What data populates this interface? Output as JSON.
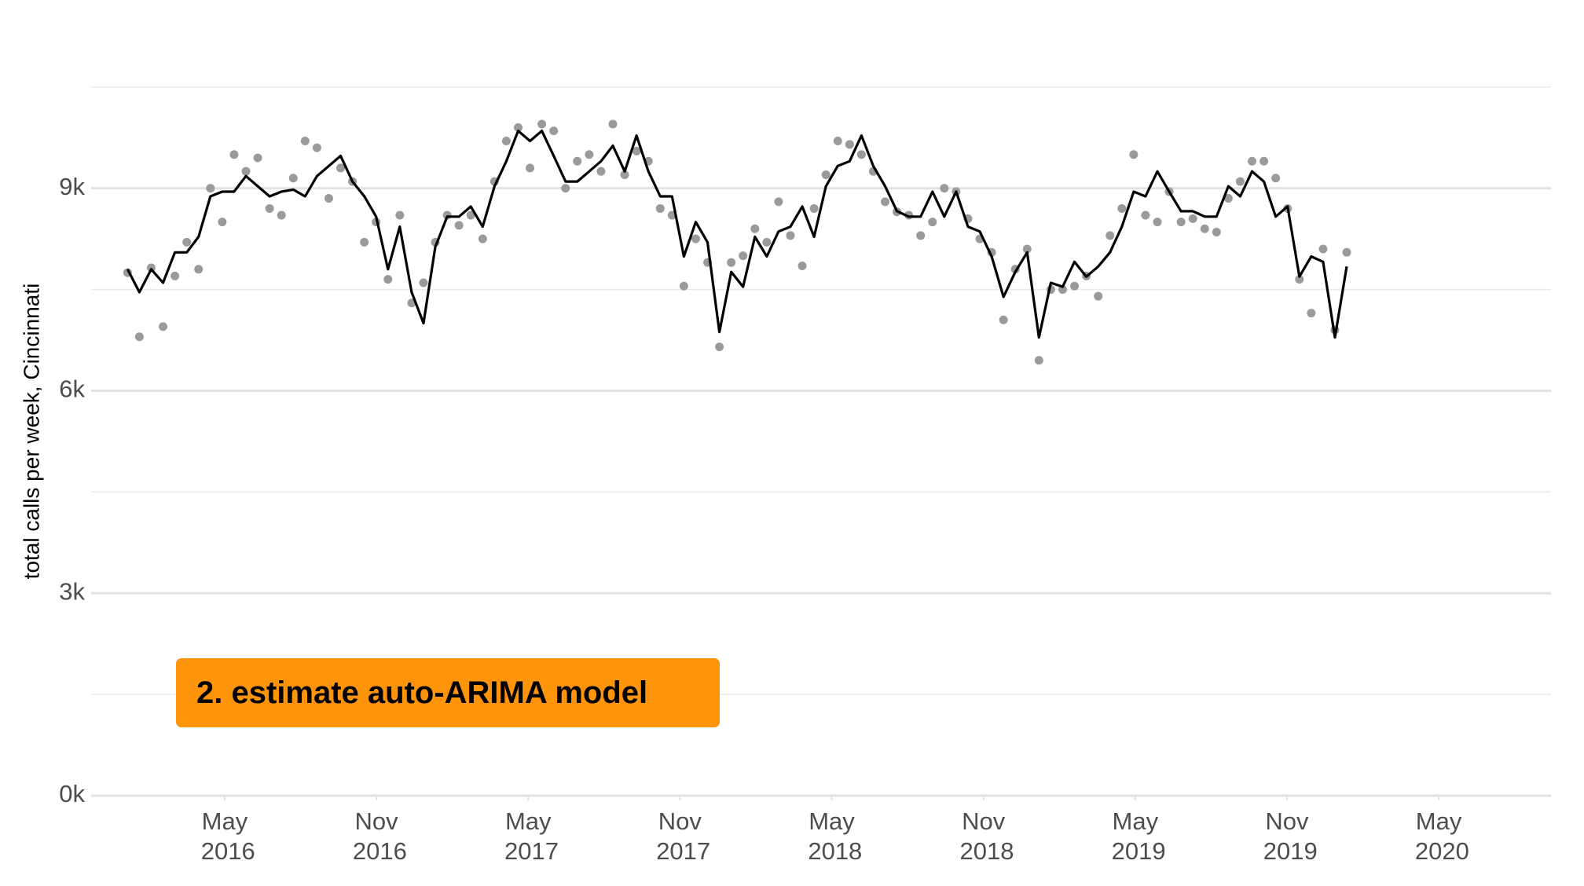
{
  "chart_data": {
    "type": "scatter-line",
    "y_label": "total calls per week, Cincinnati",
    "annotation": "2. estimate auto-ARIMA model",
    "xlim": [
      2015.89,
      2020.7
    ],
    "ylim": [
      0,
      10800
    ],
    "xticks": [
      {
        "value": 2016.33,
        "label": "May 2016"
      },
      {
        "value": 2016.83,
        "label": "Nov 2016"
      },
      {
        "value": 2017.33,
        "label": "May 2017"
      },
      {
        "value": 2017.83,
        "label": "Nov 2017"
      },
      {
        "value": 2018.33,
        "label": "May 2018"
      },
      {
        "value": 2018.83,
        "label": "Nov 2018"
      },
      {
        "value": 2019.33,
        "label": "May 2019"
      },
      {
        "value": 2019.83,
        "label": "Nov 2019"
      },
      {
        "value": 2020.33,
        "label": "May 2020"
      }
    ],
    "yticks": [
      {
        "value": 0,
        "label": "0k"
      },
      {
        "value": 3000,
        "label": "3k"
      },
      {
        "value": 6000,
        "label": "6k"
      },
      {
        "value": 9000,
        "label": "9k"
      }
    ],
    "minor_yticks": [
      1500,
      4500,
      7500,
      10500
    ],
    "grid": true,
    "x": [
      2016.01,
      2016.049,
      2016.088,
      2016.127,
      2016.166,
      2016.205,
      2016.244,
      2016.283,
      2016.322,
      2016.361,
      2016.4,
      2016.439,
      2016.478,
      2016.517,
      2016.556,
      2016.595,
      2016.634,
      2016.673,
      2016.712,
      2016.751,
      2016.79,
      2016.829,
      2016.868,
      2016.907,
      2016.946,
      2016.985,
      2017.024,
      2017.063,
      2017.102,
      2017.141,
      2017.18,
      2017.219,
      2017.258,
      2017.297,
      2017.336,
      2017.375,
      2017.414,
      2017.453,
      2017.492,
      2017.531,
      2017.57,
      2017.609,
      2017.648,
      2017.687,
      2017.726,
      2017.765,
      2017.804,
      2017.843,
      2017.882,
      2017.921,
      2017.96,
      2017.999,
      2018.038,
      2018.077,
      2018.116,
      2018.155,
      2018.194,
      2018.233,
      2018.272,
      2018.311,
      2018.35,
      2018.389,
      2018.428,
      2018.467,
      2018.506,
      2018.545,
      2018.584,
      2018.623,
      2018.662,
      2018.701,
      2018.74,
      2018.779,
      2018.818,
      2018.857,
      2018.896,
      2018.935,
      2018.974,
      2019.013,
      2019.052,
      2019.091,
      2019.13,
      2019.169,
      2019.208,
      2019.247,
      2019.286,
      2019.325,
      2019.364,
      2019.403,
      2019.442,
      2019.481,
      2019.52,
      2019.559,
      2019.598,
      2019.637,
      2019.676,
      2019.715,
      2019.754,
      2019.793,
      2019.832,
      2019.871,
      2019.91,
      2019.949,
      2019.988,
      2020.027
    ],
    "series": [
      {
        "mark": "point",
        "color": "#9a9a9a",
        "values": [
          7750,
          6800,
          7820,
          6950,
          7700,
          8200,
          7800,
          9000,
          8500,
          9500,
          9250,
          9450,
          8700,
          8600,
          9150,
          9700,
          9600,
          8850,
          9300,
          9100,
          8200,
          8500,
          7650,
          8600,
          7300,
          7600,
          8200,
          8600,
          8450,
          8600,
          8250,
          9100,
          9700,
          9900,
          9300,
          9950,
          9850,
          9000,
          9400,
          9500,
          9250,
          9950,
          9200,
          9550,
          9400,
          8700,
          8600,
          7550,
          8250,
          7900,
          6650,
          7900,
          8000,
          8400,
          8200,
          8800,
          8300,
          7850,
          8700,
          9200,
          9700,
          9650,
          9500,
          9250,
          8800,
          8650,
          8600,
          8300,
          8500,
          9000,
          8950,
          8550,
          8250,
          8050,
          7050,
          7800,
          8100,
          6450,
          7500,
          7500,
          7550,
          7700,
          7400,
          8300,
          8700,
          9500,
          8600,
          8500,
          8950,
          8500,
          8550,
          8400,
          8350,
          8850,
          9100,
          9400,
          9400,
          9150,
          8700,
          7650,
          7150,
          8100,
          6900,
          8050
        ]
      },
      {
        "mark": "line",
        "color": "#000000",
        "values": [
          7800,
          7460,
          7800,
          7600,
          8050,
          8050,
          8280,
          8880,
          8950,
          8950,
          9180,
          9030,
          8880,
          8950,
          8980,
          8880,
          9180,
          9330,
          9480,
          9100,
          8880,
          8580,
          7800,
          8430,
          7460,
          7000,
          8130,
          8580,
          8580,
          8730,
          8430,
          9030,
          9400,
          9850,
          9700,
          9850,
          9480,
          9100,
          9100,
          9250,
          9400,
          9630,
          9250,
          9780,
          9250,
          8880,
          8880,
          7990,
          8500,
          8200,
          6870,
          7760,
          7540,
          8280,
          7990,
          8360,
          8430,
          8730,
          8280,
          9030,
          9330,
          9400,
          9780,
          9330,
          9030,
          8660,
          8580,
          8580,
          8950,
          8580,
          8950,
          8430,
          8360,
          7990,
          7390,
          7760,
          8050,
          6790,
          7600,
          7540,
          7910,
          7690,
          7840,
          8050,
          8430,
          8950,
          8880,
          9250,
          8950,
          8660,
          8660,
          8580,
          8580,
          9030,
          8880,
          9250,
          9100,
          8580,
          8730,
          7690,
          7990,
          7910,
          6790,
          7840
        ]
      }
    ]
  }
}
